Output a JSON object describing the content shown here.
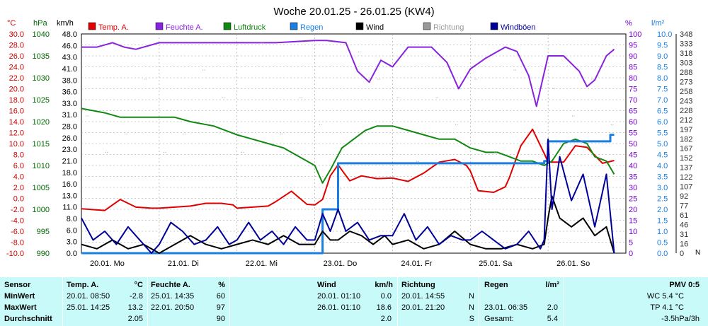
{
  "chart_data": {
    "type": "line",
    "title": "Woche 20.01.25 - 26.01.25 (KW4)",
    "axes": {
      "temp": {
        "unit": "°C",
        "ticks": [
          "30.0",
          "28.0",
          "26.0",
          "24.0",
          "22.0",
          "20.0",
          "18.0",
          "16.0",
          "14.0",
          "12.0",
          "10.0",
          "8.0",
          "6.0",
          "4.0",
          "2.0",
          "0.0",
          "-2.0",
          "-4.0",
          "-6.0",
          "-8.0",
          "-10.0"
        ],
        "color": "#cc0000"
      },
      "pressure": {
        "unit": "hPa",
        "ticks": [
          "1040",
          "1035",
          "1030",
          "1025",
          "1020",
          "1015",
          "1010",
          "1005",
          "1000",
          "995",
          "990"
        ],
        "color": "#006600"
      },
      "wind": {
        "unit": "km/h",
        "ticks": [
          "48.0",
          "46.0",
          "43.0",
          "41.0",
          "38.0",
          "36.0",
          "33.0",
          "31.0",
          "28.0",
          "26.0",
          "23.0",
          "21.0",
          "18.0",
          "16.0",
          "13.0",
          "11.0",
          "8.0",
          "6.0",
          "3.0",
          "0.0"
        ],
        "color": "#000000"
      },
      "humidity": {
        "unit": "%",
        "ticks": [
          "100",
          "95",
          "90",
          "85",
          "80",
          "75",
          "70",
          "65",
          "60",
          "55",
          "50",
          "45",
          "40",
          "35",
          "30",
          "25",
          "20",
          "15",
          "10",
          "5",
          "0"
        ],
        "color": "#7700cc"
      },
      "rain": {
        "unit": "l/m²",
        "ticks": [
          "10.0",
          "9.5",
          "9.0",
          "8.5",
          "8.0",
          "7.5",
          "7.0",
          "6.5",
          "6.0",
          "5.5",
          "5.0",
          "4.5",
          "4.0",
          "3.5",
          "3.0",
          "2.5",
          "2.0",
          "1.5",
          "1.0",
          "0.5",
          "0.0"
        ],
        "color": "#1a7fe0"
      },
      "direction": {
        "unit": "",
        "ticks": [
          "348",
          "333",
          "318",
          "303",
          "288",
          "273",
          "258",
          "243",
          "228",
          "212",
          "197",
          "182",
          "167",
          "152",
          "137",
          "122",
          "107",
          "92",
          "77",
          "61",
          "46",
          "31",
          "16",
          "0"
        ],
        "color": "#333333"
      }
    },
    "x_labels": [
      "20.01. Mo",
      "21.01. Di",
      "22.01. Mi",
      "23.01. Do",
      "24.01. Fr",
      "25.01. Sa",
      "26.01. So"
    ],
    "legend": [
      {
        "label": "Temp. A.",
        "color": "#e00000"
      },
      {
        "label": "Feuchte A.",
        "color": "#8822dd"
      },
      {
        "label": "Luftdruck",
        "color": "#118811"
      },
      {
        "label": "Regen",
        "color": "#1a7fe0"
      },
      {
        "label": "Wind",
        "color": "#000000"
      },
      {
        "label": "Richtung",
        "color": "#999999"
      },
      {
        "label": "Windböen",
        "color": "#000099"
      }
    ],
    "series": [
      {
        "name": "Temp. A.",
        "axis": "temp",
        "color": "#e00000",
        "x": [
          0,
          0.3,
          0.5,
          0.7,
          0.9,
          1.0,
          1.2,
          1.4,
          1.6,
          1.8,
          1.95,
          2.0,
          2.2,
          2.4,
          2.5,
          2.7,
          2.9,
          3.0,
          3.1,
          3.2,
          3.3,
          3.45,
          3.6,
          3.8,
          4.0,
          4.2,
          4.4,
          4.6,
          4.8,
          4.95,
          5.0,
          5.1,
          5.3,
          5.45,
          5.5,
          5.65,
          5.8,
          5.95,
          6.0,
          6.1,
          6.2,
          6.35,
          6.5,
          6.7,
          6.85
        ],
        "y": [
          -1.9,
          -2.2,
          -0.2,
          -1.6,
          -1.8,
          -1.8,
          -1.6,
          -1.4,
          -0.9,
          -0.9,
          -1.2,
          -1.8,
          -1.6,
          -1.4,
          -0.6,
          1.3,
          -1.1,
          -1.2,
          -0.2,
          4.1,
          6.1,
          3.2,
          4.1,
          3.6,
          3.7,
          3.1,
          4.6,
          6.6,
          7.1,
          6.0,
          5.0,
          1.4,
          1.1,
          2.1,
          3.7,
          9.6,
          12.6,
          8.2,
          6.6,
          6.6,
          6.6,
          9.6,
          9.3,
          6.4,
          6.9
        ]
      },
      {
        "name": "Feuchte A.",
        "axis": "humidity",
        "color": "#8822dd",
        "x": [
          0,
          0.2,
          0.4,
          0.55,
          0.7,
          1.0,
          1.5,
          2.0,
          2.5,
          3.0,
          3.15,
          3.4,
          3.55,
          3.7,
          3.85,
          4.0,
          4.2,
          4.35,
          4.5,
          4.7,
          4.85,
          5.0,
          5.2,
          5.45,
          5.6,
          5.75,
          5.85,
          6.0,
          6.2,
          6.4,
          6.5,
          6.6,
          6.75,
          6.85
        ],
        "y": [
          94,
          94,
          96,
          94,
          93,
          96,
          96,
          96,
          96,
          97,
          97,
          96,
          83,
          78,
          88,
          85,
          94,
          94,
          94,
          87,
          75,
          84,
          89,
          94,
          92,
          81,
          67,
          90,
          90,
          83,
          76,
          79,
          90,
          93
        ]
      },
      {
        "name": "Luftdruck",
        "axis": "pressure",
        "color": "#118811",
        "x": [
          0,
          0.3,
          0.5,
          0.7,
          1.0,
          1.2,
          1.4,
          1.7,
          2.0,
          2.2,
          2.4,
          2.6,
          2.8,
          3.0,
          3.1,
          3.2,
          3.35,
          3.5,
          3.65,
          3.8,
          4.0,
          4.2,
          4.4,
          4.6,
          4.8,
          5.0,
          5.2,
          5.35,
          5.5,
          5.65,
          5.8,
          5.95,
          6.05,
          6.2,
          6.35,
          6.5,
          6.6,
          6.75,
          6.85
        ],
        "y": [
          1023,
          1022,
          1021,
          1021,
          1021,
          1021,
          1020,
          1019,
          1017,
          1016,
          1015,
          1014,
          1012,
          1010,
          1006,
          1009,
          1014,
          1016,
          1018,
          1019,
          1019,
          1018,
          1017,
          1016,
          1016,
          1014,
          1013,
          1013,
          1012,
          1011,
          1011,
          1010,
          1011,
          1015,
          1016,
          1015,
          1012,
          1011,
          1008
        ]
      },
      {
        "name": "Regen",
        "axis": "rain",
        "color": "#1a7fe0",
        "x": [
          0,
          3.0,
          3.1,
          3.3,
          3.5,
          4.0,
          4.5,
          5.0,
          5.5,
          5.95,
          6.0,
          6.1,
          6.3,
          6.5,
          6.7,
          6.8,
          6.85
        ],
        "y": [
          0,
          0,
          2.0,
          4.1,
          4.1,
          4.1,
          4.1,
          4.1,
          4.1,
          4.2,
          5.1,
          5.1,
          5.1,
          5.1,
          5.1,
          5.4,
          5.4
        ]
      },
      {
        "name": "Wind",
        "axis": "wind",
        "color": "#000000",
        "x": [
          0,
          0.2,
          0.4,
          0.6,
          0.8,
          1.0,
          1.2,
          1.4,
          1.6,
          1.8,
          2.0,
          2.2,
          2.4,
          2.6,
          2.8,
          3.0,
          3.1,
          3.2,
          3.3,
          3.45,
          3.6,
          3.75,
          3.9,
          4.0,
          4.2,
          4.4,
          4.6,
          4.8,
          5.0,
          5.2,
          5.4,
          5.6,
          5.8,
          5.95,
          6.0,
          6.05,
          6.15,
          6.3,
          6.45,
          6.6,
          6.75,
          6.85
        ],
        "y": [
          2,
          1,
          3,
          1,
          2,
          0,
          2,
          4,
          2,
          1,
          2,
          3,
          2,
          4,
          2,
          2,
          5,
          3,
          3,
          5,
          4,
          2,
          4,
          2,
          3,
          1,
          2,
          5,
          2,
          1,
          1,
          2,
          1,
          2,
          8,
          13,
          8,
          6,
          8,
          4,
          6,
          0
        ]
      },
      {
        "name": "Windböen",
        "axis": "wind",
        "color": "#000099",
        "x": [
          0,
          0.15,
          0.3,
          0.45,
          0.6,
          0.75,
          0.9,
          1.0,
          1.15,
          1.3,
          1.45,
          1.6,
          1.75,
          1.9,
          2.0,
          2.15,
          2.3,
          2.45,
          2.6,
          2.75,
          2.9,
          3.0,
          3.1,
          3.2,
          3.3,
          3.4,
          3.55,
          3.7,
          3.85,
          4.0,
          4.15,
          4.3,
          4.45,
          4.6,
          4.75,
          4.9,
          5.0,
          5.15,
          5.3,
          5.45,
          5.6,
          5.75,
          5.9,
          5.95,
          6.0,
          6.05,
          6.15,
          6.3,
          6.45,
          6.6,
          6.75,
          6.85
        ],
        "y": [
          8,
          3,
          5,
          2,
          6,
          3,
          0,
          2,
          7,
          5,
          2,
          3,
          6,
          2,
          3,
          7,
          3,
          5,
          2,
          6,
          3,
          3,
          9,
          5,
          10,
          5,
          7,
          3,
          4,
          4,
          9,
          3,
          6,
          2,
          4,
          3,
          3,
          5,
          3,
          1,
          2,
          5,
          1,
          3,
          26,
          10,
          22,
          12,
          18,
          6,
          18,
          0
        ]
      },
      {
        "name": "Richtung",
        "axis": "direction",
        "color": "#999999",
        "x": [
          0.05,
          0.3,
          0.55,
          0.8,
          1.05,
          1.3,
          1.55,
          1.8,
          2.05,
          2.3,
          2.55,
          2.8,
          3.05,
          3.3,
          3.55,
          3.8,
          4.05,
          4.3,
          4.55,
          4.8,
          5.05,
          5.3,
          5.55,
          5.8,
          6.05,
          6.3,
          6.55,
          6.8
        ],
        "y": [
          225,
          165,
          195,
          285,
          165,
          195,
          300,
          255,
          165,
          345,
          195,
          255,
          210,
          105,
          330,
          285,
          255,
          150,
          255,
          210,
          285,
          165,
          300,
          195,
          270,
          225,
          285,
          210
        ]
      }
    ]
  },
  "stats": {
    "headers": {
      "sensor": "Sensor",
      "temp": "Temp. A.",
      "temp_unit": "°C",
      "hum": "Feuchte A.",
      "hum_unit": "%",
      "wind": "Wind",
      "wind_unit": "km/h",
      "dir": "Richtung",
      "rain": "Regen",
      "rain_unit": "l/m²",
      "pmv": "PMV 0:5"
    },
    "rows": [
      {
        "label": "MinWert",
        "temp_time": "20.01.  08:50",
        "temp_val": "-2.8",
        "hum_time": "25.01.  14:35",
        "hum_val": "60",
        "wind_time": "20.01.  01:10",
        "wind_val": "0.0",
        "dir_time": "20.01.  14:55",
        "dir_val": "N",
        "rain_time": "",
        "rain_val": "",
        "pmv": "WC 5.4 °C"
      },
      {
        "label": "MaxWert",
        "temp_time": "25.01.  14:25",
        "temp_val": "13.2",
        "hum_time": "22.01.  20:50",
        "hum_val": "97",
        "wind_time": "26.01.  01:10",
        "wind_val": "18.6",
        "dir_time": "20.01.  21:20",
        "dir_val": "N",
        "rain_time": "23.01.  06:35",
        "rain_val": "2.0",
        "pmv": "TP 4.1 °C"
      },
      {
        "label": "Durchschnitt",
        "temp_time": "",
        "temp_val": "2.05",
        "hum_time": "",
        "hum_val": "90",
        "wind_time": "",
        "wind_val": "2.0",
        "dir_time": "",
        "dir_val": "S",
        "rain_time": "Gesamt:",
        "rain_val": "5.4",
        "pmv": "-3.5hPa/3h"
      }
    ]
  }
}
